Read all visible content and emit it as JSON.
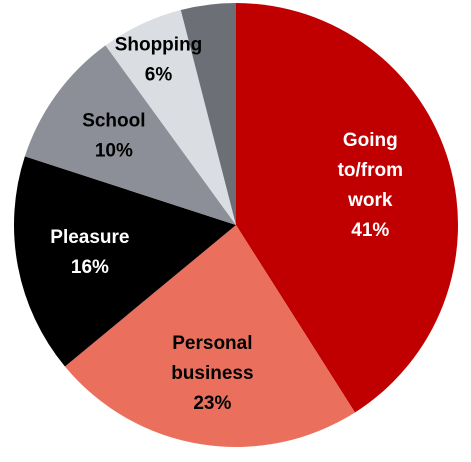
{
  "chart_data": {
    "type": "pie",
    "categories": [
      "Going to/from work",
      "Personal business",
      "Pleasure",
      "School",
      "Shopping",
      null
    ],
    "values": [
      41,
      23,
      16,
      10,
      6,
      4
    ],
    "value_labels": [
      "41%",
      "23%",
      "16%",
      "10%",
      "6%",
      null
    ],
    "colors": [
      "#c00000",
      "#ea705d",
      "#000000",
      "#8c8f97",
      "#dadde2",
      "#6c6f76"
    ]
  }
}
